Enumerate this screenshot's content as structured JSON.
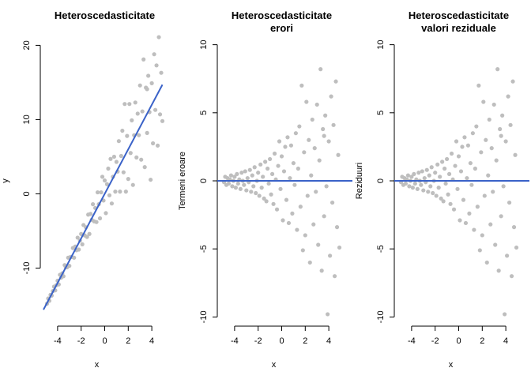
{
  "colors": {
    "points": "#bebebe",
    "line": "#3a62c8",
    "axis": "#000000"
  },
  "chart_data": [
    {
      "type": "scatter",
      "title_lines": [
        "Heteroscedasticitate"
      ],
      "xlabel": "x",
      "ylabel": "y",
      "xlim": [
        -5.2,
        5.2
      ],
      "ylim": [
        -17.5,
        21
      ],
      "xticks": [
        -4,
        -2,
        0,
        2,
        4
      ],
      "xtick_labels": [
        "-4",
        "-2",
        "0",
        "2",
        "4"
      ],
      "yticks": [
        -10,
        0,
        10,
        20
      ],
      "ytick_labels": [
        "-10",
        "0",
        "10",
        "20"
      ],
      "line": {
        "kind": "regression",
        "intercept": 0,
        "slope": 3
      }
    },
    {
      "type": "scatter",
      "title_lines": [
        "Heteroscedasticitate",
        "erori"
      ],
      "xlabel": "x",
      "ylabel": "Termeni eroare",
      "xlim": [
        -5.2,
        5.2
      ],
      "ylim": [
        -10.5,
        10.5
      ],
      "xticks": [
        -4,
        -2,
        0,
        2,
        4
      ],
      "xtick_labels": [
        "-4",
        "-2",
        "0",
        "2",
        "4"
      ],
      "yticks": [
        -10,
        -5,
        0,
        5,
        10
      ],
      "ytick_labels": [
        "-10",
        "-5",
        "0",
        "5",
        "10"
      ],
      "line": {
        "kind": "hline",
        "y": 0
      }
    },
    {
      "type": "scatter",
      "title_lines": [
        "Heteroscedasticitate",
        "valori reziduale"
      ],
      "xlabel": "x",
      "ylabel": "Reziduuri",
      "xlim": [
        -5.2,
        5.2
      ],
      "ylim": [
        -10.5,
        10.5
      ],
      "xticks": [
        -4,
        -2,
        0,
        2,
        4
      ],
      "xtick_labels": [
        "-4",
        "-2",
        "0",
        "2",
        "4"
      ],
      "yticks": [
        -10,
        -5,
        0,
        5,
        10
      ],
      "ytick_labels": [
        "-10",
        "-5",
        "0",
        "5",
        "10"
      ],
      "line": {
        "kind": "hline",
        "y": 0
      }
    }
  ],
  "series_points": [
    {
      "x": -4.9,
      "e": -0.1
    },
    {
      "x": -4.8,
      "e": 0.3
    },
    {
      "x": -4.7,
      "e": -0.3
    },
    {
      "x": -4.6,
      "e": 0.2
    },
    {
      "x": -4.5,
      "e": -0.2
    },
    {
      "x": -4.4,
      "e": 0.1
    },
    {
      "x": -4.3,
      "e": 0.4
    },
    {
      "x": -4.2,
      "e": -0.4
    },
    {
      "x": -4.1,
      "e": 0.0
    },
    {
      "x": -4.0,
      "e": 0.3
    },
    {
      "x": -3.9,
      "e": -0.5
    },
    {
      "x": -3.8,
      "e": 0.5
    },
    {
      "x": -3.7,
      "e": -0.2
    },
    {
      "x": -3.6,
      "e": 0.1
    },
    {
      "x": -3.5,
      "e": -0.6
    },
    {
      "x": -3.4,
      "e": 0.6
    },
    {
      "x": -3.3,
      "e": 0.0
    },
    {
      "x": -3.2,
      "e": -0.3
    },
    {
      "x": -3.1,
      "e": 0.7
    },
    {
      "x": -3.0,
      "e": -0.7
    },
    {
      "x": -2.9,
      "e": 0.2
    },
    {
      "x": -2.8,
      "e": -0.1
    },
    {
      "x": -2.7,
      "e": 0.8
    },
    {
      "x": -2.6,
      "e": -0.8
    },
    {
      "x": -2.5,
      "e": 0.4
    },
    {
      "x": -2.4,
      "e": -0.4
    },
    {
      "x": -2.3,
      "e": 1.0
    },
    {
      "x": -2.2,
      "e": -0.9
    },
    {
      "x": -2.1,
      "e": 0.0
    },
    {
      "x": -2.0,
      "e": 0.6
    },
    {
      "x": -1.9,
      "e": -1.1
    },
    {
      "x": -1.8,
      "e": 1.2
    },
    {
      "x": -1.7,
      "e": -0.5
    },
    {
      "x": -1.6,
      "e": 0.3
    },
    {
      "x": -1.5,
      "e": -1.3
    },
    {
      "x": -1.4,
      "e": 1.4
    },
    {
      "x": -1.3,
      "e": -1.5
    },
    {
      "x": -1.2,
      "e": 0.9
    },
    {
      "x": -1.1,
      "e": -0.2
    },
    {
      "x": -1.0,
      "e": 1.6
    },
    {
      "x": -0.9,
      "e": -1.0
    },
    {
      "x": -0.8,
      "e": 0.5
    },
    {
      "x": -0.7,
      "e": -1.7
    },
    {
      "x": -0.6,
      "e": 2.0
    },
    {
      "x": -0.5,
      "e": 0.1
    },
    {
      "x": -0.4,
      "e": -2.1
    },
    {
      "x": -0.3,
      "e": 1.1
    },
    {
      "x": -0.2,
      "e": 2.9
    },
    {
      "x": -0.1,
      "e": -0.6
    },
    {
      "x": 0.0,
      "e": 1.8
    },
    {
      "x": 0.1,
      "e": -2.9
    },
    {
      "x": 0.2,
      "e": 0.7
    },
    {
      "x": 0.3,
      "e": 2.5
    },
    {
      "x": 0.4,
      "e": -1.4
    },
    {
      "x": 0.5,
      "e": 3.2
    },
    {
      "x": 0.6,
      "e": -3.1
    },
    {
      "x": 0.7,
      "e": 0.2
    },
    {
      "x": 0.8,
      "e": 2.6
    },
    {
      "x": 0.9,
      "e": -2.4
    },
    {
      "x": 1.0,
      "e": 1.3
    },
    {
      "x": 1.1,
      "e": -0.3
    },
    {
      "x": 1.2,
      "e": 3.5
    },
    {
      "x": 1.3,
      "e": -3.6
    },
    {
      "x": 1.4,
      "e": 0.9
    },
    {
      "x": 1.5,
      "e": 4.0
    },
    {
      "x": 1.6,
      "e": -1.9
    },
    {
      "x": 1.7,
      "e": 7.0
    },
    {
      "x": 1.8,
      "e": -5.1
    },
    {
      "x": 1.9,
      "e": 2.1
    },
    {
      "x": 2.0,
      "e": -4.0
    },
    {
      "x": 2.1,
      "e": 5.8
    },
    {
      "x": 2.2,
      "e": -1.1
    },
    {
      "x": 2.3,
      "e": 3.0
    },
    {
      "x": 2.4,
      "e": -6.0
    },
    {
      "x": 2.5,
      "e": 0.4
    },
    {
      "x": 2.6,
      "e": 4.5
    },
    {
      "x": 2.7,
      "e": -3.2
    },
    {
      "x": 2.8,
      "e": 2.4
    },
    {
      "x": 2.9,
      "e": -0.8
    },
    {
      "x": 3.0,
      "e": 5.6
    },
    {
      "x": 3.1,
      "e": -4.7
    },
    {
      "x": 3.2,
      "e": 1.5
    },
    {
      "x": 3.3,
      "e": 8.2
    },
    {
      "x": 3.4,
      "e": -6.6
    },
    {
      "x": 3.5,
      "e": 3.8
    },
    {
      "x": 3.6,
      "e": -2.6
    },
    {
      "x": 3.7,
      "e": 4.8
    },
    {
      "x": 3.8,
      "e": -0.4
    },
    {
      "x": 3.9,
      "e": -9.8
    },
    {
      "x": 4.0,
      "e": 2.9
    },
    {
      "x": 4.1,
      "e": -5.5
    },
    {
      "x": 4.2,
      "e": 6.2
    },
    {
      "x": 4.3,
      "e": -1.6
    },
    {
      "x": 4.4,
      "e": 4.1
    },
    {
      "x": 4.5,
      "e": -7.0
    },
    {
      "x": 4.6,
      "e": 7.3
    },
    {
      "x": 4.7,
      "e": -3.4
    },
    {
      "x": 4.8,
      "e": 1.9
    },
    {
      "x": 4.9,
      "e": -4.9
    },
    {
      "x": 3.6,
      "e": 3.3
    }
  ]
}
